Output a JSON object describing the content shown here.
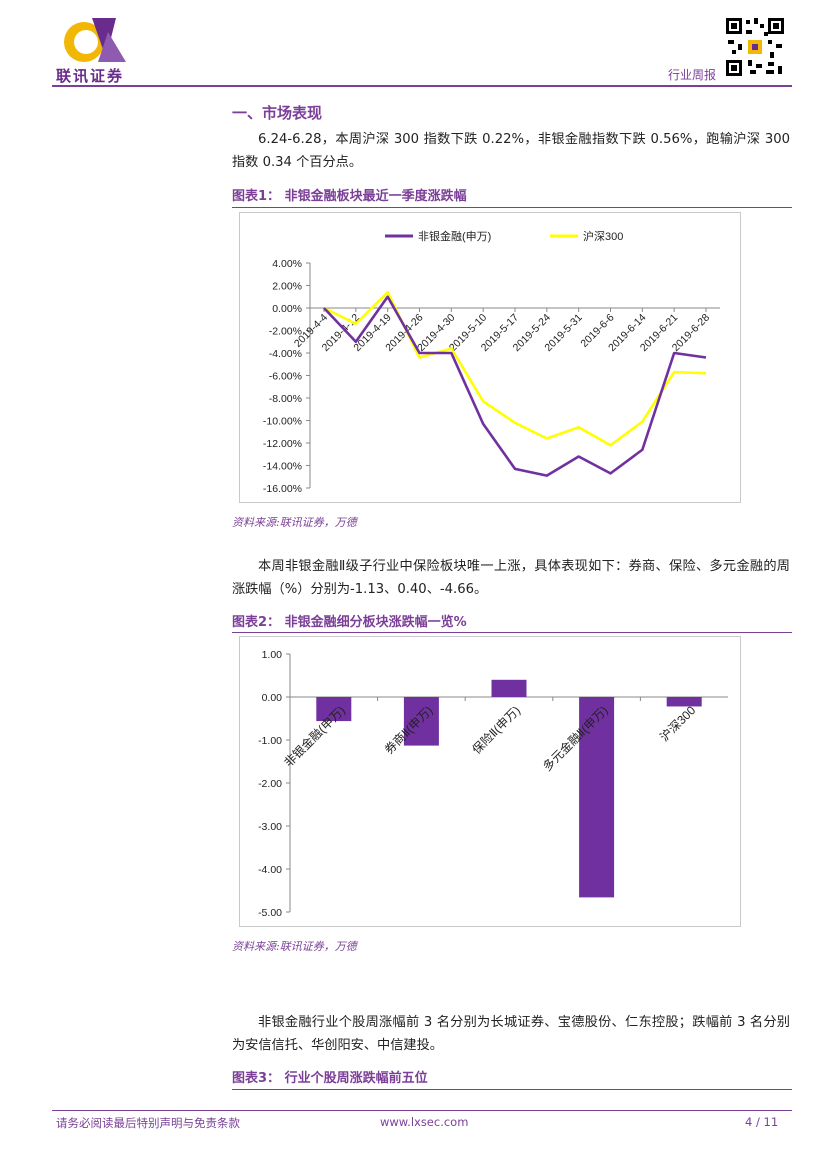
{
  "header": {
    "logo_text": "联讯证券",
    "right_label": "行业周报",
    "brand_colors": {
      "primary": "#6a2c8c",
      "accent": "#f2b705",
      "line": "#7b3f98"
    }
  },
  "section1": {
    "title": "一、市场表现",
    "para1": "6.24-6.28，本周沪深 300 指数下跌 0.22%，非银金融指数下跌 0.56%，跑输沪深 300 指数 0.34 个百分点。"
  },
  "figure1": {
    "title": "图表1：  非银金融板块最近一季度涨跌幅",
    "source": "资料来源:联讯证券，万德"
  },
  "para2": "本周非银金融Ⅱ级子行业中保险板块唯一上涨，具体表现如下：券商、保险、多元金融的周涨跌幅（%）分别为-1.13、0.40、-4.66。",
  "figure2": {
    "title": "图表2：  非银金融细分板块涨跌幅一览%",
    "source": "资料来源:联讯证券，万德"
  },
  "para3": "非银金融行业个股周涨幅前 3 名分别为长城证券、宝德股份、仁东控股；跌幅前 3 名分别为安信信托、华创阳安、中信建投。",
  "figure3": {
    "title": "图表3：  行业个股周涨跌幅前五位"
  },
  "footer": {
    "disclaimer": "请务必阅读最后特别声明与免责条款",
    "website": "www.lxsec.com",
    "page": "4 / 11"
  },
  "chart_data": [
    {
      "type": "line",
      "title": "",
      "categories": [
        "2019-4-4",
        "2019-4-12",
        "2019-4-19",
        "2019-4-26",
        "2019-4-30",
        "2019-5-10",
        "2019-5-17",
        "2019-5-24",
        "2019-5-31",
        "2019-6-6",
        "2019-6-14",
        "2019-6-21",
        "2019-6-28"
      ],
      "series": [
        {
          "name": "非银金融(申万)",
          "color": "#7030a0",
          "values": [
            0.0,
            -3.0,
            1.0,
            -4.0,
            -4.0,
            -10.3,
            -14.3,
            -14.9,
            -13.2,
            -14.7,
            -12.6,
            -4.0,
            -4.4
          ]
        },
        {
          "name": "沪深300",
          "color": "#ffff00",
          "values": [
            0.0,
            -1.4,
            1.4,
            -4.4,
            -3.6,
            -8.3,
            -10.2,
            -11.6,
            -10.6,
            -12.2,
            -10.1,
            -5.7,
            -5.8
          ]
        }
      ],
      "yticks": [
        "4.00%",
        "2.00%",
        "0.00%",
        "-2.00%",
        "-4.00%",
        "-6.00%",
        "-8.00%",
        "-10.00%",
        "-12.00%",
        "-14.00%",
        "-16.00%"
      ],
      "ylim": [
        -16,
        4
      ],
      "legend": "top",
      "grid": false
    },
    {
      "type": "bar",
      "title": "",
      "categories": [
        "非银金融(申万)",
        "券商Ⅱ(申万)",
        "保险Ⅱ(申万)",
        "多元金融Ⅱ(申万)",
        "沪深300"
      ],
      "values": [
        -0.56,
        -1.13,
        0.4,
        -4.66,
        -0.22
      ],
      "color": "#7030a0",
      "yticks": [
        "1.00",
        "0.00",
        "-1.00",
        "-2.00",
        "-3.00",
        "-4.00",
        "-5.00"
      ],
      "ylim": [
        -5,
        1
      ],
      "grid": false
    }
  ]
}
